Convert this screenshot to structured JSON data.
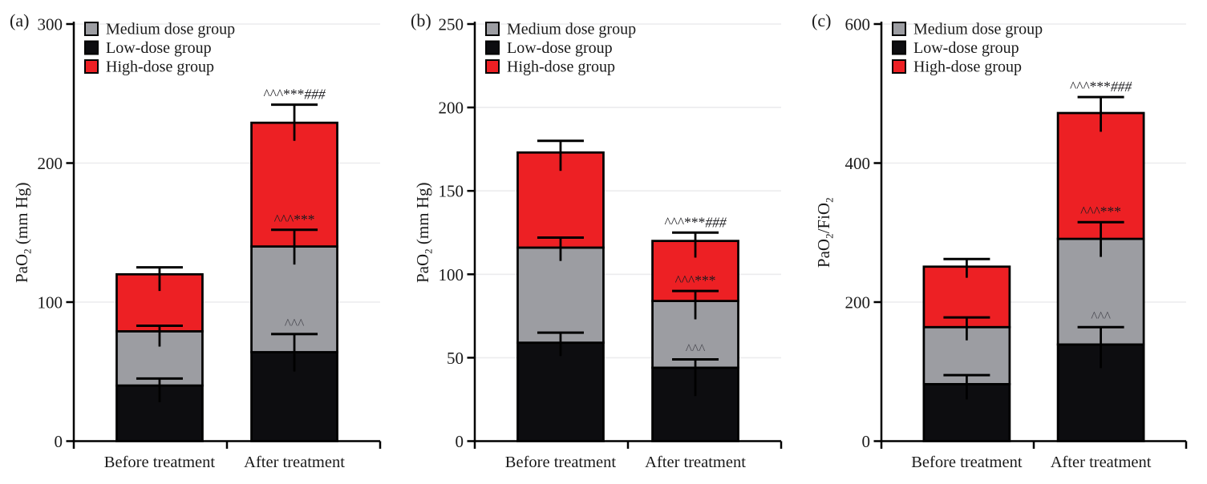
{
  "figure": {
    "background": "#ffffff",
    "text_color": "#1a1a1a"
  },
  "legend": {
    "position": "top-left",
    "items": [
      {
        "label": "Medium dose group",
        "color": "#9c9da2"
      },
      {
        "label": "Low-dose group",
        "color": "#0d0d10"
      },
      {
        "label": "High-dose group",
        "color": "#ed2024"
      }
    ]
  },
  "chart_data": [
    {
      "type": "bar",
      "stacked": true,
      "panel_label": "(a)",
      "title": "",
      "xlabel": "",
      "ylabel": "PaO₂ (mm Hg)",
      "ylabel_parts": [
        {
          "t": "PaO"
        },
        {
          "t": "2",
          "sub": true
        },
        {
          "t": " (mm Hg)"
        }
      ],
      "ylim": [
        0,
        300
      ],
      "yticks": [
        0,
        100,
        200,
        300
      ],
      "grid": true,
      "legend_position": "top-left",
      "categories": [
        "Before treatment",
        "After treatment"
      ],
      "series": [
        {
          "name": "Low-dose group",
          "color": "#0d0d10",
          "values": [
            40,
            64
          ],
          "err_up": [
            5,
            13
          ],
          "err_down": [
            12,
            14
          ],
          "annotations": [
            "",
            "^^^"
          ]
        },
        {
          "name": "Medium dose group",
          "color": "#9c9da2",
          "values": [
            39,
            76
          ],
          "err_up": [
            4,
            12
          ],
          "err_down": [
            11,
            13
          ],
          "annotations": [
            "",
            "^^^***"
          ]
        },
        {
          "name": "High-dose group",
          "color": "#ed2024",
          "values": [
            41,
            89
          ],
          "err_up": [
            5,
            13
          ],
          "err_down": [
            12,
            13
          ],
          "annotations": [
            "",
            "^^^***###"
          ]
        }
      ]
    },
    {
      "type": "bar",
      "stacked": true,
      "panel_label": "(b)",
      "title": "",
      "xlabel": "",
      "ylabel": "PaO₂ (mm Hg)",
      "ylabel_parts": [
        {
          "t": "PaO"
        },
        {
          "t": "2",
          "sub": true
        },
        {
          "t": " (mm Hg)"
        }
      ],
      "ylim": [
        0,
        250
      ],
      "yticks": [
        0,
        50,
        100,
        150,
        200,
        250
      ],
      "grid": true,
      "legend_position": "top-left",
      "categories": [
        "Before treatment",
        "After treatment"
      ],
      "series": [
        {
          "name": "Low-dose group",
          "color": "#0d0d10",
          "values": [
            59,
            44
          ],
          "err_up": [
            6,
            5
          ],
          "err_down": [
            8,
            17
          ],
          "annotations": [
            "",
            "^^^"
          ]
        },
        {
          "name": "Medium dose group",
          "color": "#9c9da2",
          "values": [
            57,
            40
          ],
          "err_up": [
            6,
            6
          ],
          "err_down": [
            8,
            11
          ],
          "annotations": [
            "",
            "^^^***"
          ]
        },
        {
          "name": "High-dose group",
          "color": "#ed2024",
          "values": [
            57,
            36
          ],
          "err_up": [
            7,
            5
          ],
          "err_down": [
            11,
            10
          ],
          "annotations": [
            "",
            "^^^***###"
          ]
        }
      ]
    },
    {
      "type": "bar",
      "stacked": true,
      "panel_label": "(c)",
      "title": "",
      "xlabel": "",
      "ylabel": "PaO₂/FiO₂",
      "ylabel_parts": [
        {
          "t": "PaO"
        },
        {
          "t": "2",
          "sub": true
        },
        {
          "t": "/FiO"
        },
        {
          "t": "2",
          "sub": true
        }
      ],
      "ylim": [
        0,
        600
      ],
      "yticks": [
        0,
        200,
        400,
        600
      ],
      "grid": true,
      "legend_position": "top-left",
      "categories": [
        "Before treatment",
        "After treatment"
      ],
      "series": [
        {
          "name": "Low-dose group",
          "color": "#0d0d10",
          "values": [
            82,
            139
          ],
          "err_up": [
            13,
            25
          ],
          "err_down": [
            22,
            34
          ],
          "annotations": [
            "",
            "^^^"
          ]
        },
        {
          "name": "Medium dose group",
          "color": "#9c9da2",
          "values": [
            82,
            152
          ],
          "err_up": [
            14,
            24
          ],
          "err_down": [
            19,
            26
          ],
          "annotations": [
            "",
            "^^^***"
          ]
        },
        {
          "name": "High-dose group",
          "color": "#ed2024",
          "values": [
            87,
            181
          ],
          "err_up": [
            11,
            23
          ],
          "err_down": [
            16,
            27
          ],
          "annotations": [
            "",
            "^^^***###"
          ]
        }
      ]
    }
  ]
}
